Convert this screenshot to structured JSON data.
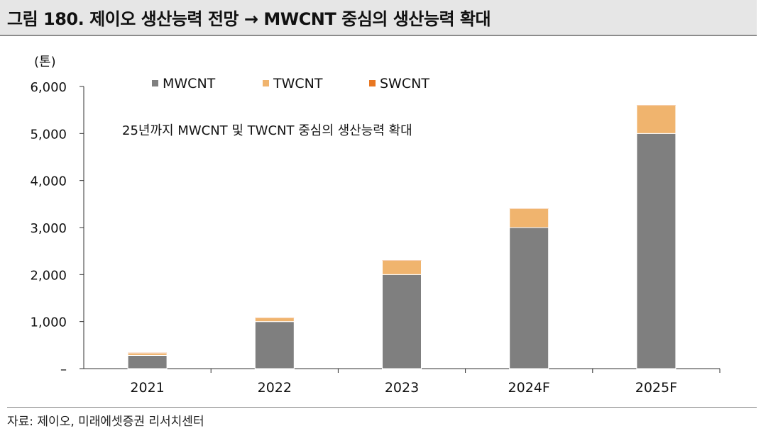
{
  "header": {
    "title": "그림 180. 제이오 생산능력 전망 → MWCNT 중심의 생산능력 확대"
  },
  "footer": {
    "source": "자료: 제이오, 미래에셋증권 리서치센터"
  },
  "chart_data": {
    "type": "bar",
    "stacked": true,
    "title": "",
    "unit_label": "(톤)",
    "xlabel": "",
    "ylabel": "",
    "categories": [
      "2021",
      "2022",
      "2023",
      "2024F",
      "2025F"
    ],
    "series": [
      {
        "name": "MWCNT",
        "color": "#7f7f7f",
        "values": [
          280,
          1000,
          2000,
          3000,
          5000
        ]
      },
      {
        "name": "TWCNT",
        "color": "#f0b46e",
        "values": [
          50,
          80,
          300,
          400,
          600
        ]
      },
      {
        "name": "SWCNT",
        "color": "#e87722",
        "values": [
          5,
          5,
          5,
          5,
          5
        ]
      }
    ],
    "ylim": [
      0,
      6000
    ],
    "yticks": [
      0,
      1000,
      2000,
      3000,
      4000,
      5000,
      6000
    ],
    "ytick_labels": [
      "–",
      "1,000",
      "2,000",
      "3,000",
      "4,000",
      "5,000",
      "6,000"
    ],
    "annotation": "25년까지 MWCNT 및 TWCNT 중심의 생산능력 확대",
    "legend_position": "top",
    "grid": false
  }
}
